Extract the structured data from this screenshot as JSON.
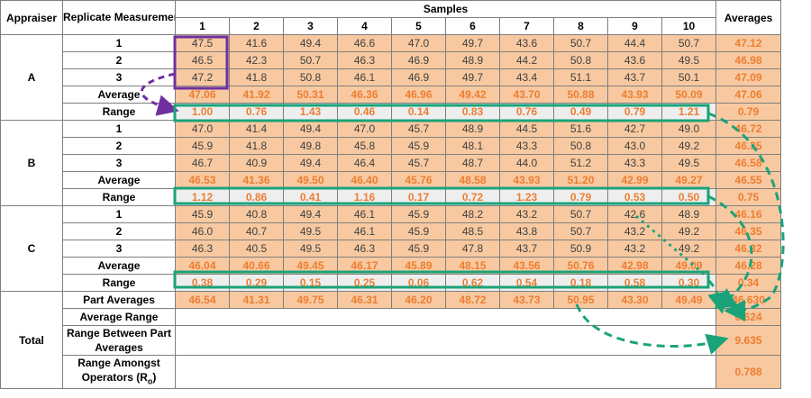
{
  "headers": {
    "appraiser": "Appraiser",
    "replicate": "Replicate Measurements",
    "samples": "Samples",
    "averages": "Averages",
    "sample_numbers": [
      "1",
      "2",
      "3",
      "4",
      "5",
      "6",
      "7",
      "8",
      "9",
      "10"
    ]
  },
  "appraisers": [
    {
      "name": "A",
      "rows": [
        {
          "label": "1",
          "values": [
            "47.5",
            "41.6",
            "49.4",
            "46.6",
            "47.0",
            "49.7",
            "43.6",
            "50.7",
            "44.4",
            "50.7"
          ],
          "avg": "47.12"
        },
        {
          "label": "2",
          "values": [
            "46.5",
            "42.3",
            "50.7",
            "46.3",
            "46.9",
            "48.9",
            "44.2",
            "50.8",
            "43.6",
            "49.5"
          ],
          "avg": "46.98"
        },
        {
          "label": "3",
          "values": [
            "47.2",
            "41.8",
            "50.8",
            "46.1",
            "46.9",
            "49.7",
            "43.4",
            "51.1",
            "43.7",
            "50.1"
          ],
          "avg": "47.09"
        }
      ],
      "average": {
        "label": "Average",
        "values": [
          "47.06",
          "41.92",
          "50.31",
          "46.36",
          "46.96",
          "49.42",
          "43.70",
          "50.88",
          "43.93",
          "50.09"
        ],
        "avg": "47.06"
      },
      "range": {
        "label": "Range",
        "values": [
          "1.00",
          "0.76",
          "1.43",
          "0.46",
          "0.14",
          "0.83",
          "0.76",
          "0.49",
          "0.79",
          "1.21"
        ],
        "avg": "0.79"
      }
    },
    {
      "name": "B",
      "rows": [
        {
          "label": "1",
          "values": [
            "47.0",
            "41.4",
            "49.4",
            "47.0",
            "45.7",
            "48.9",
            "44.5",
            "51.6",
            "42.7",
            "49.0"
          ],
          "avg": "46.72"
        },
        {
          "label": "2",
          "values": [
            "45.9",
            "41.8",
            "49.8",
            "45.8",
            "45.9",
            "48.1",
            "43.3",
            "50.8",
            "43.0",
            "49.2"
          ],
          "avg": "46.35"
        },
        {
          "label": "3",
          "values": [
            "46.7",
            "40.9",
            "49.4",
            "46.4",
            "45.7",
            "48.7",
            "44.0",
            "51.2",
            "43.3",
            "49.5"
          ],
          "avg": "46.58"
        }
      ],
      "average": {
        "label": "Average",
        "values": [
          "46.53",
          "41.36",
          "49.50",
          "46.40",
          "45.76",
          "48.58",
          "43.93",
          "51.20",
          "42.99",
          "49.27"
        ],
        "avg": "46.55"
      },
      "range": {
        "label": "Range",
        "values": [
          "1.12",
          "0.86",
          "0.41",
          "1.16",
          "0.17",
          "0.72",
          "1.23",
          "0.79",
          "0.53",
          "0.50"
        ],
        "avg": "0.75"
      }
    },
    {
      "name": "C",
      "rows": [
        {
          "label": "1",
          "values": [
            "45.9",
            "40.8",
            "49.4",
            "46.1",
            "45.9",
            "48.2",
            "43.2",
            "50.7",
            "42.6",
            "48.9"
          ],
          "avg": "46.16"
        },
        {
          "label": "2",
          "values": [
            "46.0",
            "40.7",
            "49.5",
            "46.1",
            "45.9",
            "48.5",
            "43.8",
            "50.7",
            "43.2",
            "49.2"
          ],
          "avg": "46.35"
        },
        {
          "label": "3",
          "values": [
            "46.3",
            "40.5",
            "49.5",
            "46.3",
            "45.9",
            "47.8",
            "43.7",
            "50.9",
            "43.2",
            "49.2"
          ],
          "avg": "46.32"
        }
      ],
      "average": {
        "label": "Average",
        "values": [
          "46.04",
          "40.66",
          "49.45",
          "46.17",
          "45.89",
          "48.15",
          "43.56",
          "50.76",
          "42.98",
          "49.09"
        ],
        "avg": "46.28"
      },
      "range": {
        "label": "Range",
        "values": [
          "0.38",
          "0.29",
          "0.15",
          "0.25",
          "0.06",
          "0.62",
          "0.54",
          "0.18",
          "0.58",
          "0.30"
        ],
        "avg": "0.34"
      }
    }
  ],
  "total": {
    "label": "Total",
    "part_averages": {
      "label": "Part Averages",
      "values": [
        "46.54",
        "41.31",
        "49.75",
        "46.31",
        "46.20",
        "48.72",
        "43.73",
        "50.95",
        "43.30",
        "49.49"
      ],
      "avg": "46.630"
    },
    "average_range": {
      "label": "Average Range",
      "value": "0.624"
    },
    "range_between": {
      "label": "Range Between Part Averages",
      "value": "9.635"
    },
    "range_amongst": {
      "label": "Range Amongst Operators (R",
      "sub": "o",
      "tail": ")",
      "value": "0.788"
    }
  },
  "annotation_colors": {
    "purple": "#7030a0",
    "teal": "#1aa37a",
    "orange_text": "#ed7d31",
    "cell_fill": "#f8c9a0",
    "range_fill": "#eeeeee"
  }
}
